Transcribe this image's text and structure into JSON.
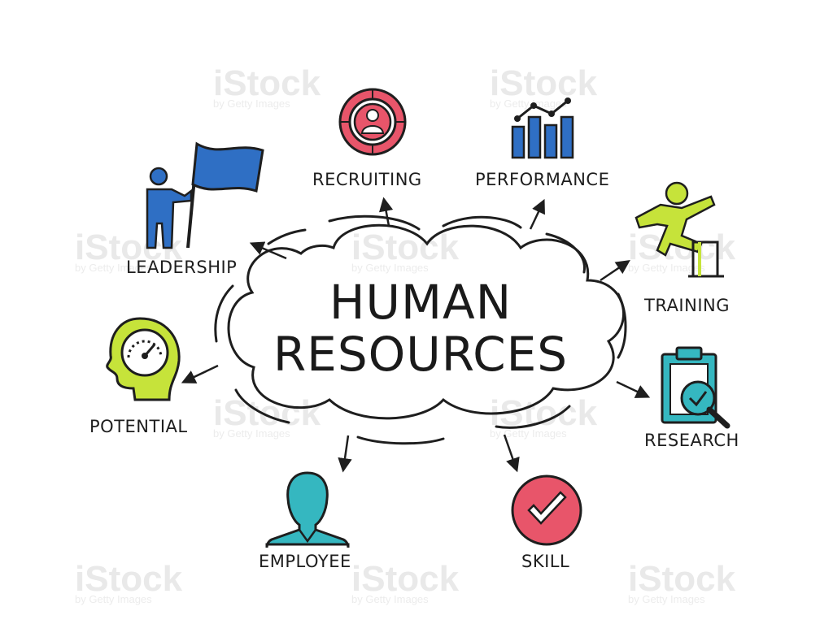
{
  "title": {
    "line1": "HUMAN",
    "line2": "RESOURCES"
  },
  "watermark": {
    "brand": "iStock",
    "credit": "by Getty Images"
  },
  "nodes": {
    "recruiting": "RECRUITING",
    "performance": "PERFORMANCE",
    "leadership": "LEADERSHIP",
    "training": "TRAINING",
    "potential": "POTENTIAL",
    "research": "RESEARCH",
    "employee": "EMPLOYEE",
    "skill": "SKILL"
  },
  "colors": {
    "ink": "#1e1e1e",
    "blue": "#2f6fc4",
    "red": "#e8556a",
    "teal": "#35b7c0",
    "lime": "#c6e33a"
  },
  "icons": {
    "recruiting": "person-target-icon",
    "performance": "bar-chart-icon",
    "leadership": "flag-person-icon",
    "training": "hurdle-jump-icon",
    "potential": "head-gauge-icon",
    "research": "clipboard-magnifier-icon",
    "employee": "person-icon",
    "skill": "check-circle-icon"
  }
}
